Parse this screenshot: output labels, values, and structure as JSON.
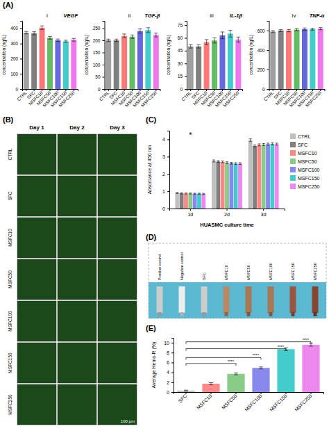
{
  "chart_data": [
    {
      "type": "bar",
      "title": "(A)",
      "annotations": [
        "i",
        "VEGF"
      ],
      "ylabel": "concentration (ng/L)",
      "categories": [
        "CTRL",
        "SFC",
        "MSFC10",
        "MSFC50",
        "MSFC100",
        "MSFC150",
        "MSFC250"
      ],
      "values": [
        372,
        368,
        405,
        338,
        322,
        315,
        325
      ],
      "errors": [
        8,
        10,
        12,
        9,
        8,
        7,
        9
      ],
      "colors": [
        "#A0A0A0",
        "#808080",
        "#FF7777",
        "#66BB66",
        "#6666DD",
        "#44CCCC",
        "#EE77EE"
      ],
      "ylim": [
        0,
        450
      ],
      "yticks": [
        0,
        100,
        200,
        300,
        400
      ]
    },
    {
      "type": "bar",
      "annotations": [
        "ii",
        "TGF-β"
      ],
      "ylabel": "concentration (ng/L)",
      "categories": [
        "CTRL",
        "SFC",
        "MSFC10",
        "MSFC50",
        "MSFC100",
        "MSFC150",
        "MSFC250"
      ],
      "values": [
        200,
        200,
        218,
        215,
        238,
        242,
        222
      ],
      "errors": [
        5,
        5,
        8,
        7,
        9,
        10,
        8
      ],
      "colors": [
        "#A0A0A0",
        "#808080",
        "#FF7777",
        "#66BB66",
        "#6666DD",
        "#44CCCC",
        "#EE77EE"
      ],
      "ylim": [
        0,
        280
      ],
      "yticks": [
        0,
        50,
        100,
        150,
        200,
        250
      ]
    },
    {
      "type": "bar",
      "annotations": [
        "iii",
        "IL-1β"
      ],
      "ylabel": "concentration (ng/L)",
      "categories": [
        "CTRL",
        "SFC",
        "MSFC10",
        "MSFC50",
        "MSFC100",
        "MSFC150",
        "MSFC250"
      ],
      "values": [
        50,
        50,
        55,
        57,
        63,
        65,
        58
      ],
      "errors": [
        2,
        2,
        3,
        3,
        4,
        4,
        3
      ],
      "colors": [
        "#A0A0A0",
        "#808080",
        "#FF7777",
        "#66BB66",
        "#6666DD",
        "#44CCCC",
        "#EE77EE"
      ],
      "ylim": [
        0,
        80
      ],
      "yticks": [
        0,
        15,
        30,
        45,
        60,
        75
      ]
    },
    {
      "type": "bar",
      "annotations": [
        "iv",
        "TNF-α"
      ],
      "ylabel": "concentration (ng/L)",
      "categories": [
        "CTRL",
        "SFC",
        "MSFC10",
        "MSFC50",
        "MSFC100",
        "MSFC150",
        "MSFC250"
      ],
      "values": [
        590,
        600,
        600,
        610,
        615,
        615,
        620
      ],
      "errors": [
        10,
        10,
        12,
        11,
        12,
        10,
        11
      ],
      "colors": [
        "#A0A0A0",
        "#808080",
        "#FF7777",
        "#66BB66",
        "#6666DD",
        "#44CCCC",
        "#EE77EE"
      ],
      "ylim": [
        0,
        700
      ],
      "yticks": [
        0,
        200,
        400,
        600
      ]
    },
    {
      "type": "image_grid",
      "title": "(B)",
      "columns": [
        "Day 1",
        "Day 2",
        "Day 3"
      ],
      "rows": [
        "CTRL",
        "SFC",
        "MSFC10",
        "MSFC50",
        "MSFC100",
        "MSFC150",
        "MSFC250"
      ],
      "color": "#1A4A1A",
      "annotations": [
        "100 μm"
      ]
    },
    {
      "type": "bar",
      "title": "(C)",
      "xlabel": "HUASMC culture time",
      "ylabel": "Absorbance at 450 nm",
      "categories": [
        "1d",
        "2d",
        "3d"
      ],
      "series": [
        {
          "name": "CTRL",
          "color": "#C0C0C0",
          "values": [
            0.9,
            2.75,
            3.95
          ],
          "errors": [
            0.03,
            0.06,
            0.08
          ]
        },
        {
          "name": "SFC",
          "color": "#808080",
          "values": [
            0.88,
            2.72,
            3.62
          ],
          "errors": [
            0.03,
            0.05,
            0.06
          ]
        },
        {
          "name": "MSFC10",
          "color": "#FF8888",
          "values": [
            0.87,
            2.7,
            3.68
          ],
          "errors": [
            0.03,
            0.05,
            0.06
          ]
        },
        {
          "name": "MSFC50",
          "color": "#88CC88",
          "values": [
            0.87,
            2.65,
            3.7
          ],
          "errors": [
            0.03,
            0.05,
            0.06
          ]
        },
        {
          "name": "MSFC100",
          "color": "#8888EE",
          "values": [
            0.86,
            2.62,
            3.72
          ],
          "errors": [
            0.03,
            0.05,
            0.06
          ]
        },
        {
          "name": "MSFC150",
          "color": "#44CCCC",
          "values": [
            0.86,
            2.6,
            3.74
          ],
          "errors": [
            0.03,
            0.05,
            0.06
          ]
        },
        {
          "name": "MSFC250",
          "color": "#EE88EE",
          "values": [
            0.85,
            2.6,
            3.72
          ],
          "errors": [
            0.03,
            0.05,
            0.06
          ]
        }
      ],
      "ylim": [
        0,
        4.5
      ],
      "yticks": [
        0,
        1,
        2,
        3,
        4
      ],
      "legend": "right",
      "annotations": [
        "*"
      ]
    },
    {
      "type": "image",
      "title": "(D)",
      "categories": [
        "Positive control",
        "Negative control",
        "SFC",
        "MSFC10",
        "MSFC50",
        "MSFC100",
        "MSFC150",
        "MSFC250"
      ],
      "color": "#5BB8D0",
      "colors": [
        "#CCCCCC",
        "#EEEEEE",
        "#CCCCCC",
        "#BB8866",
        "#AA7755",
        "#AA7755",
        "#995544",
        "#884433"
      ]
    },
    {
      "type": "bar",
      "title": "(E)",
      "ylabel": "Average Hemo-R (%)",
      "categories": [
        "SFC",
        "MSFC10",
        "MSFC50",
        "MSFC100",
        "MSFC150",
        "MSFC250"
      ],
      "values": [
        0.3,
        1.7,
        3.7,
        4.9,
        8.7,
        9.6
      ],
      "errors": [
        0.1,
        0.2,
        0.2,
        0.2,
        0.3,
        0.3
      ],
      "colors": [
        "#C0C0C0",
        "#FF8888",
        "#88CC88",
        "#8888EE",
        "#44CCCC",
        "#EE88EE"
      ],
      "ylim": [
        0,
        11
      ],
      "yticks": [
        0,
        2,
        4,
        6,
        8,
        10
      ],
      "brackets": [
        {
          "from": "SFC",
          "to": "MSFC50",
          "y": 5.8,
          "label": "****"
        },
        {
          "from": "SFC",
          "to": "MSFC100",
          "y": 7.0,
          "label": "****"
        },
        {
          "from": "SFC",
          "to": "MSFC150",
          "y": 8.8,
          "label": "****"
        },
        {
          "from": "SFC",
          "to": "MSFC250",
          "y": 10.2,
          "label": "****"
        }
      ]
    }
  ]
}
